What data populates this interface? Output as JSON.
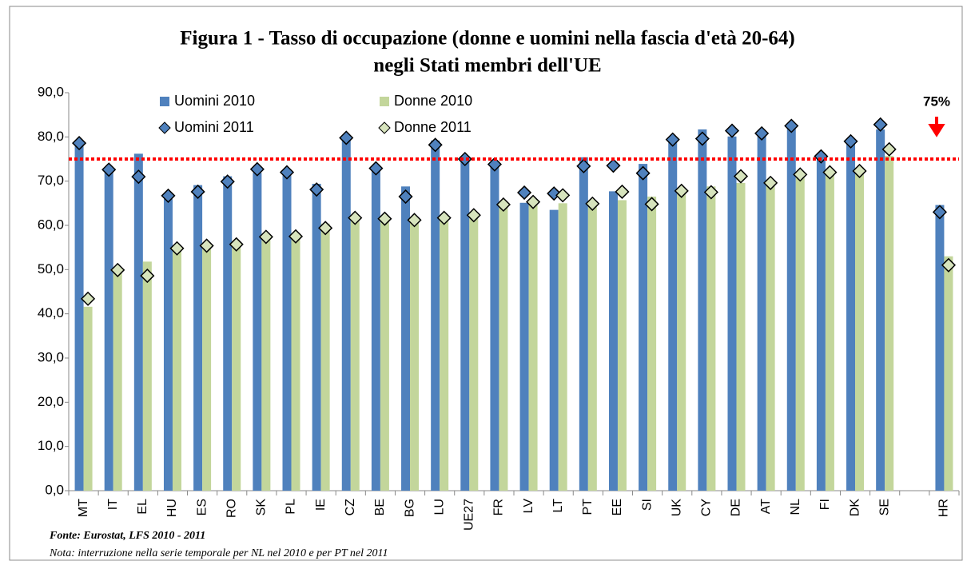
{
  "chart_data": {
    "type": "bar",
    "title": [
      "Figura 1 - Tasso di occupazione (donne e uomini nella fascia d'età 20-64)",
      "negli Stati membri dell'UE"
    ],
    "categories": [
      "MT",
      "IT",
      "EL",
      "HU",
      "ES",
      "RO",
      "SK",
      "PL",
      "IE",
      "CZ",
      "BE",
      "BG",
      "LU",
      "UE27",
      "FR",
      "LV",
      "LT",
      "PT",
      "EE",
      "SI",
      "UK",
      "CY",
      "DE",
      "AT",
      "NL",
      "FI",
      "DK",
      "SE",
      null,
      "HR"
    ],
    "series": [
      {
        "name": "Uomini 2010",
        "color": "#4f81bd",
        "mark": "bar",
        "values": [
          78.2,
          72.8,
          76.2,
          66.0,
          69.1,
          71.1,
          71.9,
          71.6,
          69.4,
          79.6,
          73.0,
          68.8,
          79.2,
          75.1,
          73.7,
          65.1,
          63.5,
          75.4,
          67.7,
          73.9,
          79.3,
          81.7,
          80.1,
          80.9,
          82.8,
          75.0,
          79.0,
          81.7,
          null,
          64.6
        ]
      },
      {
        "name": "Donne 2010",
        "color": "#c3d69b",
        "mark": "bar",
        "values": [
          41.6,
          49.5,
          51.8,
          55.0,
          55.8,
          55.9,
          57.4,
          57.7,
          60.4,
          60.9,
          61.6,
          61.7,
          62.0,
          62.1,
          64.9,
          64.9,
          65.0,
          65.6,
          65.7,
          66.5,
          67.9,
          68.8,
          69.6,
          69.6,
          70.8,
          71.5,
          73.1,
          75.7,
          null,
          53.0
        ]
      },
      {
        "name": "Uomini 2011",
        "color": "#4f81bd",
        "mark": "diamond",
        "values": [
          78.6,
          72.6,
          71.0,
          66.7,
          67.6,
          69.9,
          72.7,
          72.0,
          68.1,
          79.8,
          72.9,
          66.5,
          78.2,
          75.0,
          73.8,
          67.4,
          67.2,
          73.4,
          73.5,
          71.8,
          79.4,
          79.6,
          81.4,
          80.8,
          82.5,
          75.6,
          79.0,
          82.8,
          null,
          63.0
        ]
      },
      {
        "name": "Donne 2011",
        "color": "#d7e4bd",
        "mark": "diamond",
        "values": [
          43.4,
          49.9,
          48.6,
          54.8,
          55.4,
          55.7,
          57.4,
          57.5,
          59.4,
          61.7,
          61.5,
          61.2,
          61.7,
          62.3,
          64.7,
          65.3,
          66.8,
          64.9,
          67.6,
          64.8,
          67.8,
          67.5,
          71.1,
          69.6,
          71.5,
          72.0,
          72.3,
          77.2,
          null,
          51.0
        ]
      }
    ],
    "ylim": [
      0,
      90
    ],
    "yticks": [
      {
        "value": 0,
        "label": "0,0"
      },
      {
        "value": 10,
        "label": "10,0"
      },
      {
        "value": 20,
        "label": "20,0"
      },
      {
        "value": 30,
        "label": "30,0"
      },
      {
        "value": 40,
        "label": "40,0"
      },
      {
        "value": 50,
        "label": "50,0"
      },
      {
        "value": 60,
        "label": "60,0"
      },
      {
        "value": 70,
        "label": "70,0"
      },
      {
        "value": 80,
        "label": "80,0"
      },
      {
        "value": 90,
        "label": "90,0"
      }
    ],
    "target": 75,
    "target_label": "75%",
    "target_color": "#ff0000",
    "source": "Fonte: Eurostat, LFS 2010 - 2011",
    "note": "Nota: interruzione nella serie temporale per  NL nel 2010 e per PT nel 2011"
  }
}
